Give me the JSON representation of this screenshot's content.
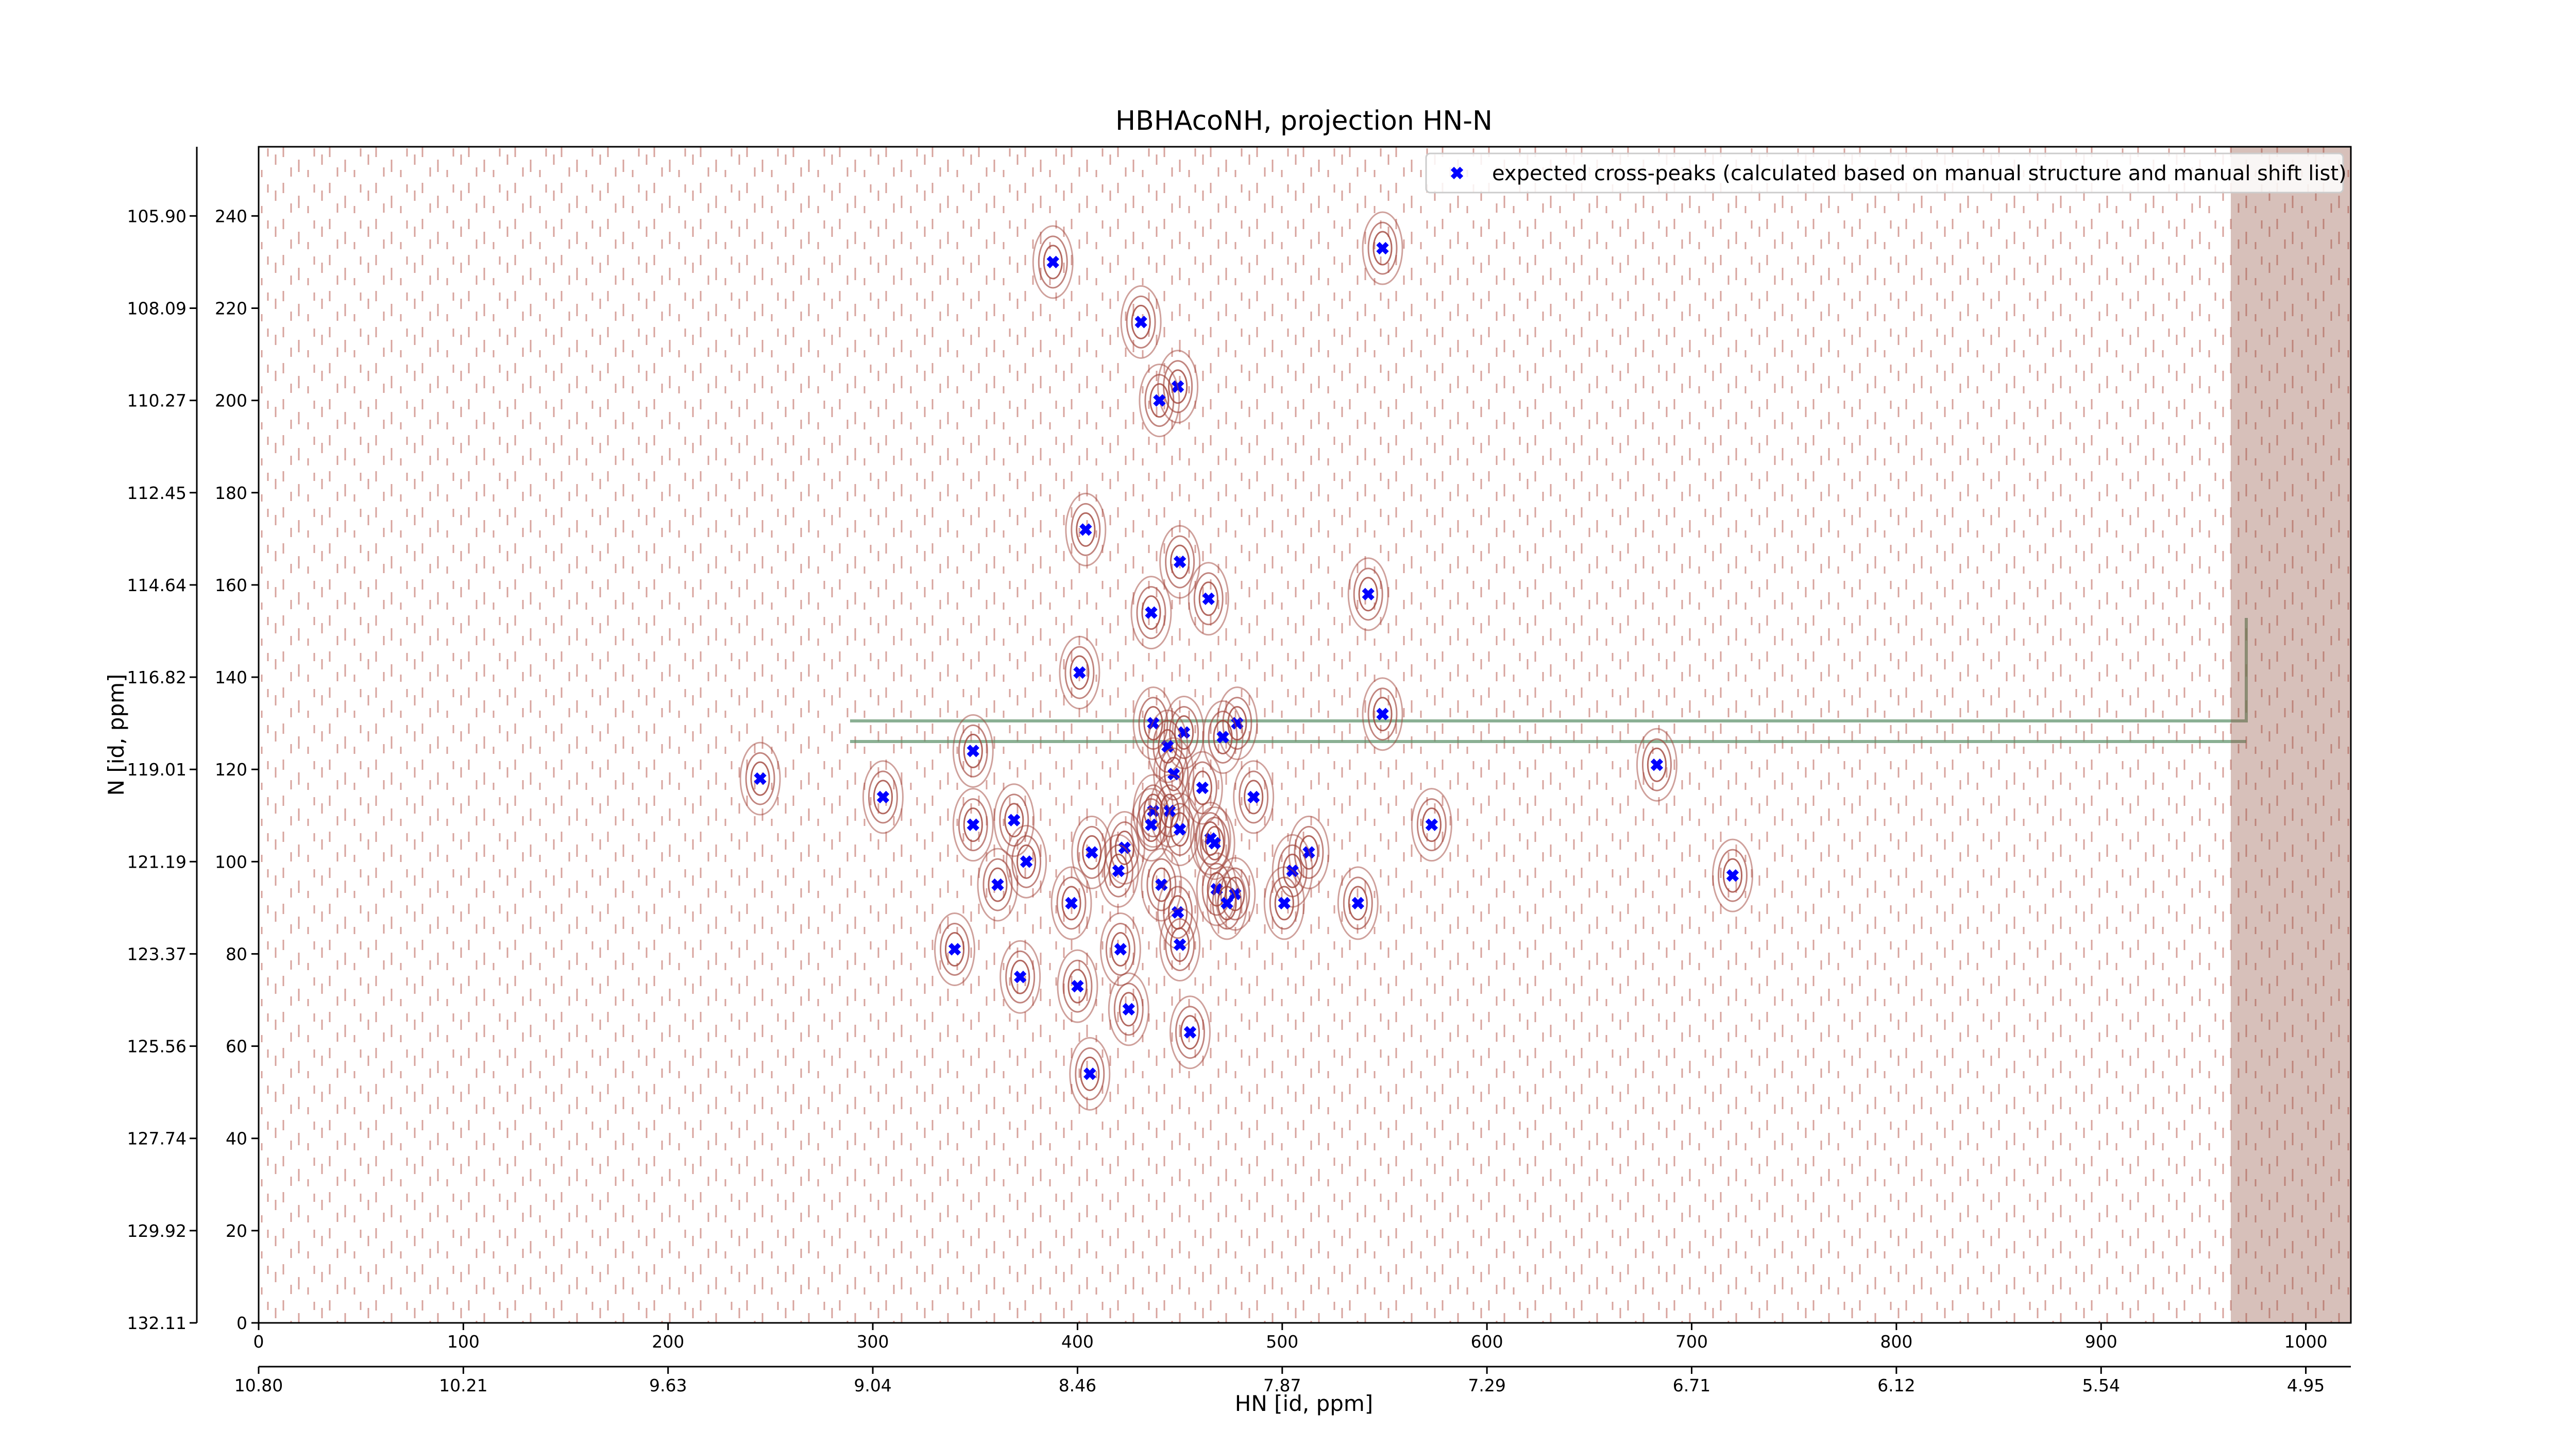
{
  "chart_data": {
    "type": "scatter",
    "title": "HBHAcoNH, projection HN-N",
    "x_label": "HN [id, ppm]",
    "y_label": "N [id, ppm]",
    "xlim": [
      0,
      1022
    ],
    "ylim": [
      0,
      255
    ],
    "xticks": [
      0,
      100,
      200,
      300,
      400,
      500,
      600,
      700,
      800,
      900,
      1000
    ],
    "yticks": [
      0,
      20,
      40,
      60,
      80,
      100,
      120,
      140,
      160,
      180,
      200,
      220,
      240
    ],
    "x2ticks": [
      {
        "value": 0,
        "label": "10.80"
      },
      {
        "value": 100,
        "label": "10.21"
      },
      {
        "value": 200,
        "label": "9.63"
      },
      {
        "value": 300,
        "label": "9.04"
      },
      {
        "value": 400,
        "label": "8.46"
      },
      {
        "value": 500,
        "label": "7.87"
      },
      {
        "value": 600,
        "label": "7.29"
      },
      {
        "value": 700,
        "label": "6.71"
      },
      {
        "value": 800,
        "label": "6.12"
      },
      {
        "value": 900,
        "label": "5.54"
      },
      {
        "value": 1000,
        "label": "4.95"
      }
    ],
    "y2lim": [
      0,
      255
    ],
    "y2ticks": [
      {
        "value": 240,
        "label": "105.90"
      },
      {
        "value": 220,
        "label": "108.09"
      },
      {
        "value": 200,
        "label": "110.27"
      },
      {
        "value": 180,
        "label": "112.45"
      },
      {
        "value": 160,
        "label": "114.64"
      },
      {
        "value": 140,
        "label": "116.82"
      },
      {
        "value": 120,
        "label": "119.01"
      },
      {
        "value": 100,
        "label": "121.19"
      },
      {
        "value": 80,
        "label": "123.37"
      },
      {
        "value": 60,
        "label": "125.56"
      },
      {
        "value": 40,
        "label": "127.74"
      },
      {
        "value": 20,
        "label": "129.92"
      },
      {
        "value": 0,
        "label": "132.11"
      }
    ],
    "legend": "upper right",
    "series": [
      {
        "name": "expected cross-peaks (calculated based on manual structure and manual shift list)",
        "color": "#0000ff",
        "x": [
          388,
          549,
          431,
          449,
          440,
          404,
          450,
          464,
          436,
          542,
          401,
          549,
          437,
          452,
          478,
          471,
          444,
          349,
          245,
          447,
          683,
          305,
          486,
          461,
          437,
          445,
          349,
          369,
          436,
          573,
          450,
          465,
          467,
          407,
          423,
          513,
          375,
          420,
          505,
          441,
          361,
          468,
          477,
          473,
          720,
          397,
          501,
          537,
          449,
          340,
          421,
          450,
          372,
          400,
          425,
          455,
          406
        ],
        "values": [
          230,
          233,
          217,
          203,
          200,
          172,
          165,
          157,
          154,
          158,
          141,
          132,
          130,
          128,
          130,
          127,
          125,
          124,
          118,
          119,
          121,
          114,
          114,
          116,
          111,
          111,
          108,
          109,
          108,
          108,
          107,
          105,
          104,
          102,
          103,
          102,
          100,
          98,
          98,
          95,
          95,
          94,
          93,
          91,
          97,
          91,
          91,
          91,
          89,
          81,
          81,
          82,
          75,
          73,
          68,
          63,
          54
        ]
      }
    ]
  }
}
